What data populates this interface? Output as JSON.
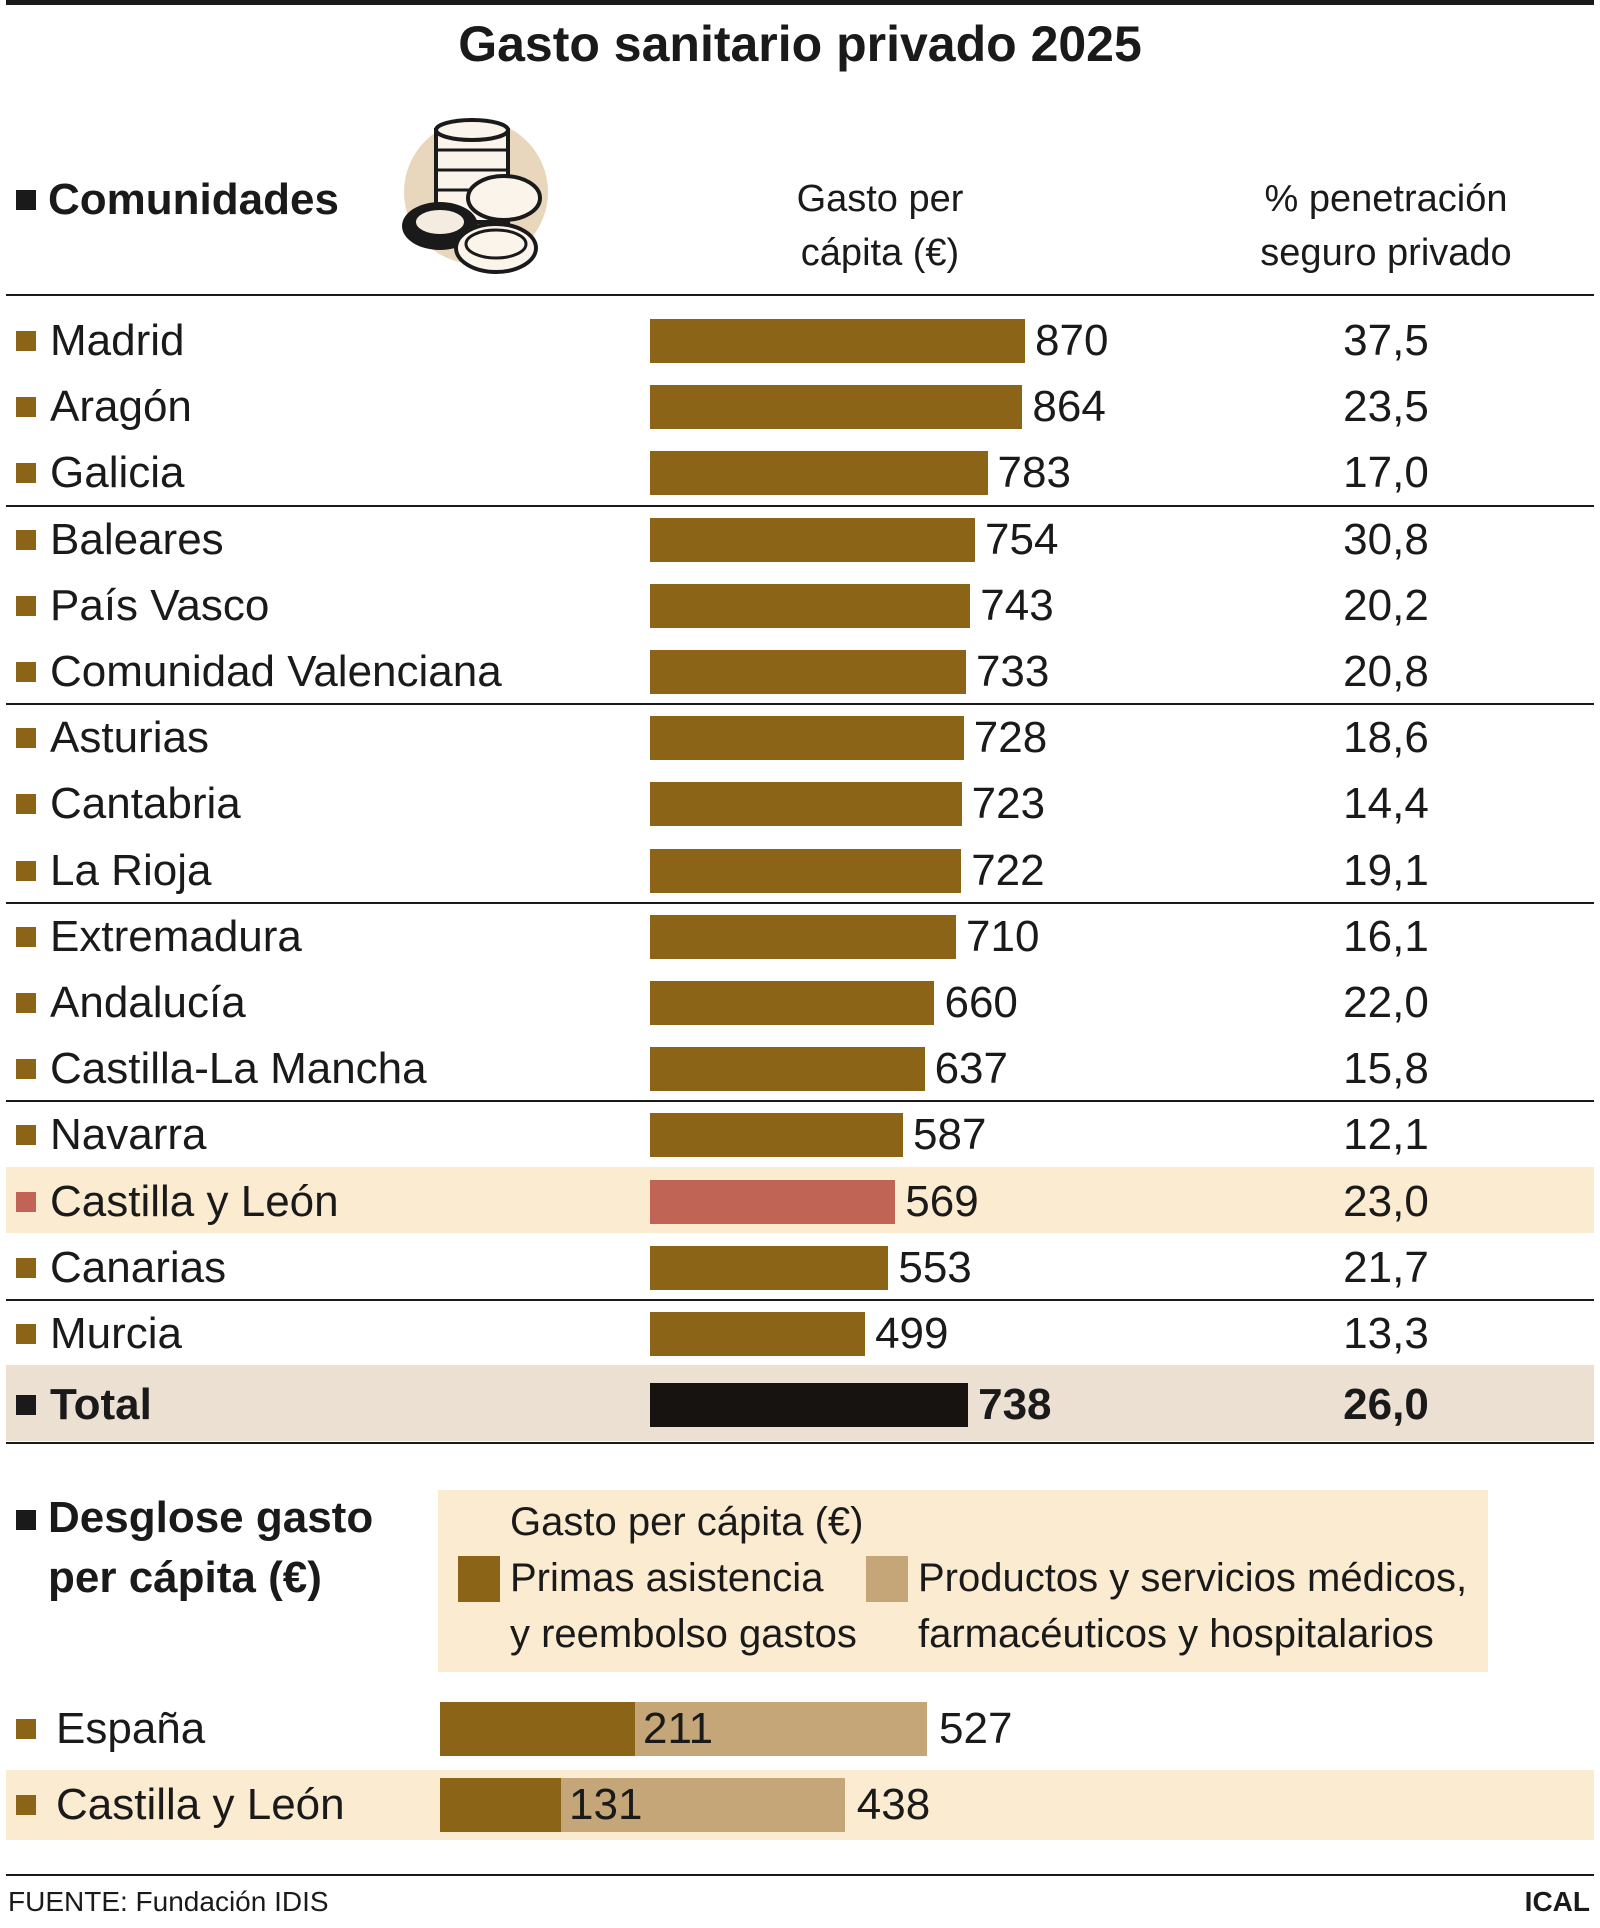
{
  "title": "Gasto sanitario privado 2025",
  "header": {
    "section_label": "Comunidades",
    "col_gasto": [
      "Gasto per",
      "cápita (€)"
    ],
    "col_pct": [
      "% penetración",
      "seguro privado"
    ]
  },
  "colors": {
    "bar": "#8b6418",
    "highlight_bar": "#c06455",
    "total_bar": "#161311",
    "highlight_band": "#fbebd0",
    "total_band": "#ece0d2",
    "light_segment": "#c4a678",
    "ink": "#1a1a1a"
  },
  "chart_data": [
    {
      "type": "bar",
      "orientation": "horizontal",
      "categories": [
        "Madrid",
        "Aragón",
        "Galicia",
        "Baleares",
        "País Vasco",
        "Comunidad Valenciana",
        "Asturias",
        "Cantabria",
        "La Rioja",
        "Extremadura",
        "Andalucía",
        "Castilla-La Mancha",
        "Navarra",
        "Castilla y León",
        "Canarias",
        "Murcia",
        "Total"
      ],
      "values": [
        870,
        864,
        783,
        754,
        743,
        733,
        728,
        723,
        722,
        710,
        660,
        637,
        587,
        569,
        553,
        499,
        738
      ],
      "value_labels": [
        "870",
        "864",
        "783",
        "754",
        "743",
        "733",
        "728",
        "723",
        "722",
        "710",
        "660",
        "637",
        "587",
        "569",
        "553",
        "499",
        "738"
      ],
      "penetration_pct": [
        "37,5",
        "23,5",
        "17,0",
        "30,8",
        "20,2",
        "20,8",
        "18,6",
        "14,4",
        "19,1",
        "16,1",
        "22,0",
        "15,8",
        "12,1",
        "23,0",
        "21,7",
        "13,3",
        "26,0"
      ],
      "highlight": "Castilla y León",
      "total_label": "Total",
      "xlim": [
        0,
        870
      ]
    },
    {
      "type": "bar",
      "stacked": true,
      "title": [
        "Desglose gasto",
        "per cápita (€)"
      ],
      "legend_title": "Gasto per cápita (€)",
      "categories": [
        "España",
        "Castilla y León"
      ],
      "series": [
        {
          "name": [
            "Primas asistencia",
            "y reembolso gastos"
          ],
          "values": [
            211,
            131
          ]
        },
        {
          "name": [
            "Productos y servicios médicos,",
            "farmacéuticos y hospitalarios"
          ],
          "values": [
            316,
            307
          ]
        }
      ],
      "segment_labels": [
        "211",
        "131"
      ],
      "totals": [
        527,
        438
      ],
      "total_labels": [
        "527",
        "438"
      ]
    }
  ],
  "source": "FUENTE: Fundación IDIS",
  "credit": "ICAL"
}
